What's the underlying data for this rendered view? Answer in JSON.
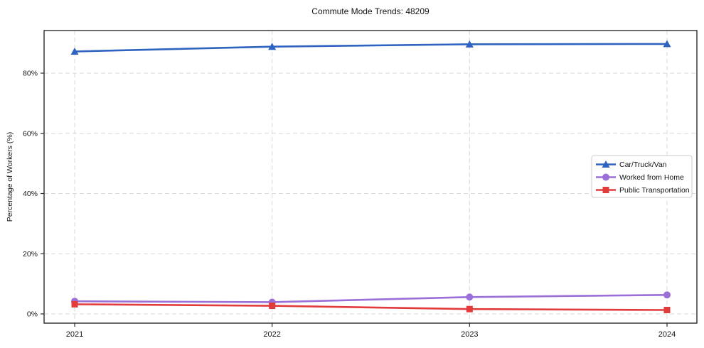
{
  "chart_data": {
    "type": "line",
    "title": "Commute Mode Trends: 48209",
    "xlabel": "",
    "ylabel": "Percentage of Workers (%)",
    "x": [
      2021,
      2022,
      2023,
      2024
    ],
    "x_tick_labels": [
      "2021",
      "2022",
      "2023",
      "2024"
    ],
    "y_ticks": [
      0,
      20,
      40,
      60,
      80
    ],
    "y_tick_labels": [
      "0%",
      "20%",
      "40%",
      "60%",
      "80%"
    ],
    "ylim": [
      -3,
      94
    ],
    "grid": true,
    "grid_style": "dashed",
    "grid_color": "#d9d9d9",
    "spine_color": "#2b2b2b",
    "text_color": "#141414",
    "legend_position": "center right",
    "series": [
      {
        "name": "Car/Truck/Van",
        "color": "#2e63bf",
        "marker": "triangle",
        "values": [
          87.2,
          88.8,
          89.6,
          89.7
        ]
      },
      {
        "name": "Worked from Home",
        "color": "#9a6fd8",
        "marker": "circle",
        "values": [
          4.2,
          3.9,
          5.6,
          6.3
        ]
      },
      {
        "name": "Public Transportation",
        "color": "#e23b3b",
        "marker": "square",
        "values": [
          3.2,
          2.7,
          1.6,
          1.3
        ]
      }
    ]
  }
}
